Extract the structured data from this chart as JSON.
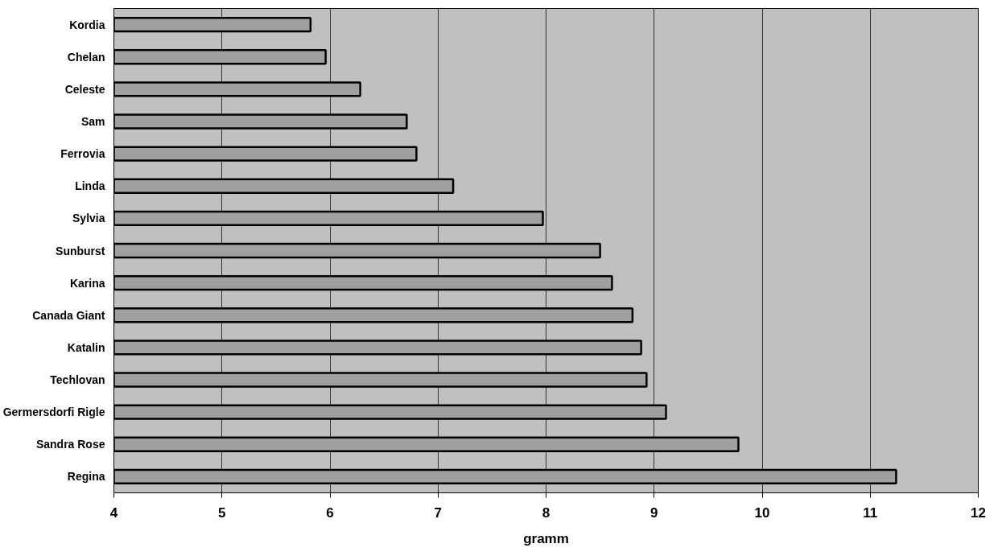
{
  "chart_data": {
    "type": "bar",
    "orientation": "horizontal",
    "xlabel": "gramm",
    "categories": [
      "Kordia",
      "Chelan",
      "Celeste",
      "Sam",
      "Ferrovia",
      "Linda",
      "Sylvia",
      "Sunburst",
      "Karina",
      "Canada Giant",
      "Katalin",
      "Techlovan",
      "Germersdorfi Rigle",
      "Sandra Rose",
      "Regina"
    ],
    "values": [
      5.82,
      5.96,
      6.28,
      6.71,
      6.8,
      7.14,
      7.97,
      8.5,
      8.61,
      8.8,
      8.88,
      8.93,
      9.11,
      9.78,
      11.24
    ],
    "color": "#a0a0a0",
    "xlim": [
      4,
      12
    ],
    "xticks": [
      4,
      5,
      6,
      7,
      8,
      9,
      10,
      11,
      12
    ],
    "grid": "x"
  }
}
